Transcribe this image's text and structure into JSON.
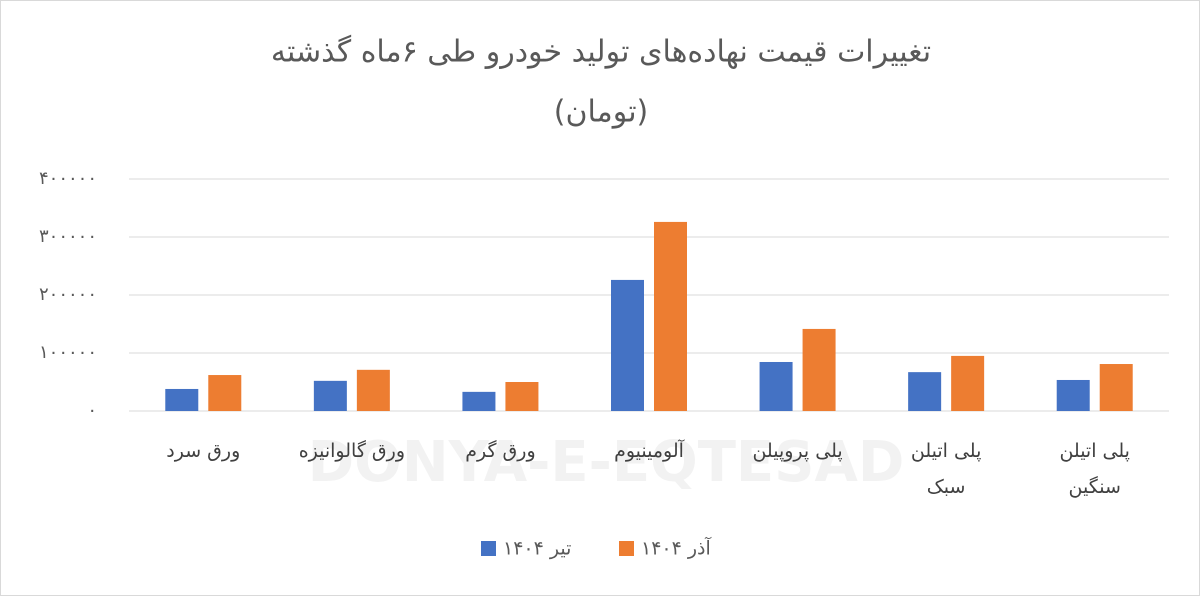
{
  "chart_data": {
    "type": "bar",
    "title": "تغییرات قیمت نهاده‌های تولید خودرو طی  ۶ماه گذشته",
    "subtitle": "(تومان)",
    "watermark": "DONYA-E-EQTESAD",
    "categories": [
      "ورق سرد",
      "ورق گالوانیزه",
      "ورق گرم",
      "آلومینیوم",
      "پلی پروپیلن",
      "پلی اتیلن\nسبک",
      "پلی اتیلن\nسنگین"
    ],
    "series": [
      {
        "name": "تیر ۱۴۰۴",
        "color": "#4472c4",
        "values": [
          38000,
          52000,
          33000,
          226000,
          84500,
          67000,
          53500
        ]
      },
      {
        "name": "آذر ۱۴۰۴",
        "color": "#ed7d31",
        "values": [
          62000,
          71000,
          50000,
          326000,
          141500,
          95000,
          81000
        ]
      }
    ],
    "ylim": [
      0,
      400000
    ],
    "yticks": [
      {
        "value": 0,
        "label": "۰"
      },
      {
        "value": 100000,
        "label": "۱۰۰۰۰۰"
      },
      {
        "value": 200000,
        "label": "۲۰۰۰۰۰"
      },
      {
        "value": 300000,
        "label": "۳۰۰۰۰۰"
      },
      {
        "value": 400000,
        "label": "۴۰۰۰۰۰"
      }
    ],
    "grid": true
  }
}
